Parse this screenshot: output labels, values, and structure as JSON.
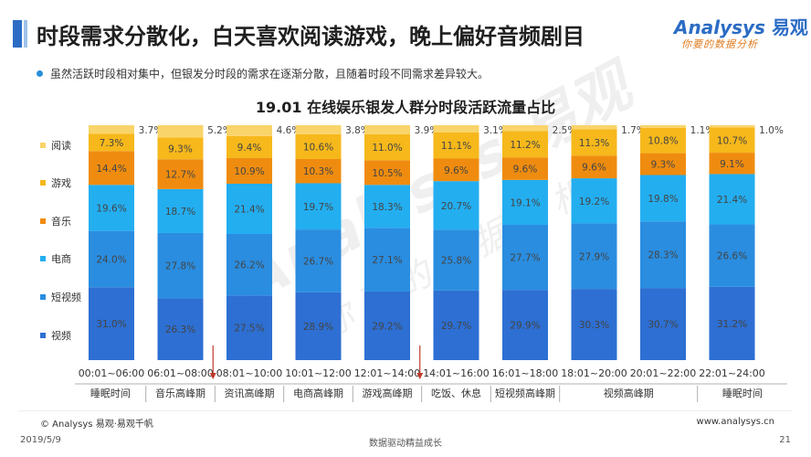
{
  "header": {
    "title": "时段需求分散化，白天喜欢阅读游戏，晚上偏好音频剧目",
    "logo_main": "nalysys",
    "logo_prefix": "A",
    "logo_cn": "易观",
    "logo_sub": "你要的数据分析"
  },
  "bullet_text": "虽然活跃时段相对集中，但银发分时段的需求在逐渐分散，且随着时段不同需求差异较大。",
  "colors": {
    "视频": "#2d6fd2",
    "短视频": "#2a8de0",
    "电商": "#23aef0",
    "音乐": "#ef8c0f",
    "游戏": "#f6b81b",
    "阅读": "#f9d46a"
  },
  "chart_data": {
    "type": "bar",
    "stacked": true,
    "title": "19.01 在线娱乐银发人群分时段活跃流量占比",
    "categories": [
      "00:01~06:00",
      "06:01~08:00",
      "08:01~10:00",
      "10:01~12:00",
      "12:01~14:00",
      "14:01~16:00",
      "16:01~18:00",
      "18:01~20:00",
      "20:01~22:00",
      "22:01~24:00"
    ],
    "ylim": [
      0,
      100
    ],
    "legend_position": "left",
    "series": [
      {
        "name": "视频",
        "values": [
          31.0,
          26.3,
          27.5,
          28.9,
          29.2,
          29.7,
          29.9,
          30.3,
          30.7,
          31.2
        ]
      },
      {
        "name": "短视频",
        "values": [
          24.0,
          27.8,
          26.2,
          26.7,
          27.1,
          25.8,
          27.7,
          27.9,
          28.3,
          26.6
        ]
      },
      {
        "name": "电商",
        "values": [
          19.6,
          18.7,
          21.4,
          19.7,
          18.3,
          20.7,
          19.1,
          19.2,
          19.8,
          21.4
        ]
      },
      {
        "name": "音乐",
        "values": [
          14.4,
          12.7,
          10.9,
          10.3,
          10.5,
          9.6,
          9.6,
          9.6,
          9.3,
          9.1
        ]
      },
      {
        "name": "游戏",
        "values": [
          7.3,
          9.3,
          9.4,
          10.6,
          11.0,
          11.1,
          11.2,
          11.3,
          10.8,
          10.7
        ]
      },
      {
        "name": "阅读",
        "values": [
          3.7,
          5.2,
          4.6,
          3.8,
          3.9,
          3.1,
          2.5,
          1.7,
          1.1,
          1.0
        ]
      }
    ],
    "labels": {
      "视频": [
        "31.0%",
        "26.3%",
        "27.5%",
        "28.9%",
        "29.2%",
        "29.7%",
        "29.9%",
        "30.3%",
        "30.7%",
        "31.2%"
      ],
      "短视频": [
        "24.0%",
        "27.8%",
        "26.2%",
        "26.7%",
        "27.1%",
        "25.8%",
        "27.7%",
        "27.9%",
        "28.3%",
        "26.6%"
      ],
      "电商": [
        "19.6%",
        "18.7%",
        "21.4%",
        "19.7%",
        "18.3%",
        "20.7%",
        "19.1%",
        "19.2%",
        "19.8%",
        "21.4%"
      ],
      "音乐": [
        "14.4%",
        "12.7%",
        "10.9%",
        "10.3%",
        "10.5%",
        "9.6%",
        "9.6%",
        "9.6%",
        "9.3%",
        "9.1%"
      ],
      "游戏": [
        "7.3%",
        "9.3%",
        "9.4%",
        "10.6%",
        "11.0%",
        "11.1%",
        "11.2%",
        "11.3%",
        "10.8%",
        "10.7%"
      ],
      "阅读": [
        "3.7%",
        "5.2%",
        "4.6%",
        "3.8%",
        "3.9%",
        "3.1%",
        "2.5%",
        "1.7%",
        "1.1%",
        "1.0%"
      ]
    },
    "legend_order": [
      "阅读",
      "游戏",
      "音乐",
      "电商",
      "短视频",
      "视频"
    ],
    "period_labels": [
      "睡眠时间",
      "音乐高峰期",
      "资讯高峰期",
      "电商高峰期",
      "游戏高峰期",
      "吃饭、休息",
      "短视频高峰期",
      "视频高峰期",
      "睡眠时间"
    ],
    "period_spans": [
      [
        0,
        0
      ],
      [
        1,
        1
      ],
      [
        2,
        2
      ],
      [
        3,
        3
      ],
      [
        4,
        4
      ],
      [
        5,
        5
      ],
      [
        6,
        6
      ],
      [
        7,
        8
      ],
      [
        9,
        9
      ]
    ],
    "arrow_markers": [
      2,
      5
    ]
  },
  "watermark": {
    "text": "Analysys 易观",
    "sub": "你要的数据分析"
  },
  "footer": {
    "source": "© Analysys 易观·易观千帆",
    "site": "www.analysys.cn",
    "date": "2019/5/9",
    "slogan": "数据驱动精益成长",
    "page": "21"
  }
}
